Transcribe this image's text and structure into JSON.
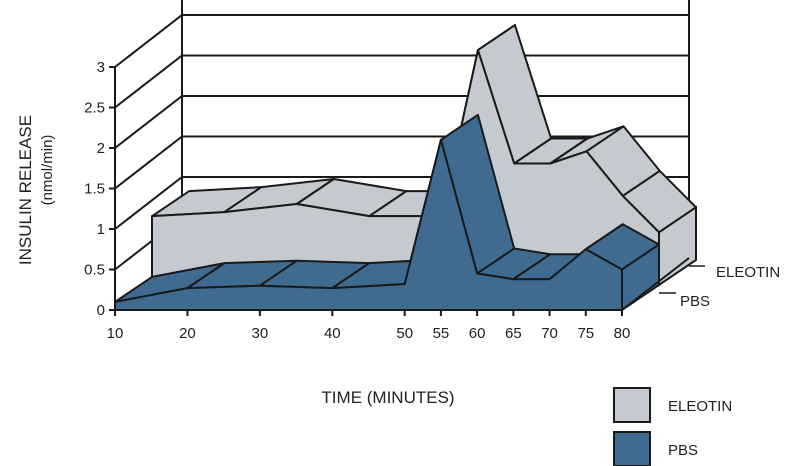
{
  "chart_data": {
    "type": "area",
    "style": "3d-stacked-ribbon",
    "x": [
      10,
      20,
      30,
      40,
      50,
      55,
      60,
      65,
      70,
      75,
      80
    ],
    "categories": [
      "10",
      "20",
      "30",
      "40",
      "50",
      "55",
      "60",
      "65",
      "70",
      "75",
      "80"
    ],
    "xlabel": "TIME (MINUTES)",
    "ylabel": "INSULIN RELEASE",
    "ylabel_unit": "(nmol/min)",
    "y_tick_labels": [
      "0",
      "0.5",
      "1",
      "1.5",
      "2",
      "2.5",
      "3"
    ],
    "ylim": [
      0,
      3
    ],
    "series": [
      {
        "name": "PBS",
        "color": "#3f6b91",
        "values": [
          0.1,
          0.27,
          0.3,
          0.27,
          0.32,
          2.1,
          0.45,
          0.38,
          0.38,
          0.75,
          0.5
        ]
      },
      {
        "name": "ELEOTIN",
        "color": "#c5c9d0",
        "values": [
          0.85,
          0.9,
          1.0,
          0.85,
          0.85,
          2.9,
          1.5,
          1.5,
          1.65,
          1.1,
          0.65
        ]
      }
    ],
    "depth_labels": [
      "ELEOTIN",
      "PBS"
    ],
    "legend": {
      "position": "bottom-right",
      "entries": [
        "ELEOTIN",
        "PBS"
      ]
    },
    "grid": true
  }
}
